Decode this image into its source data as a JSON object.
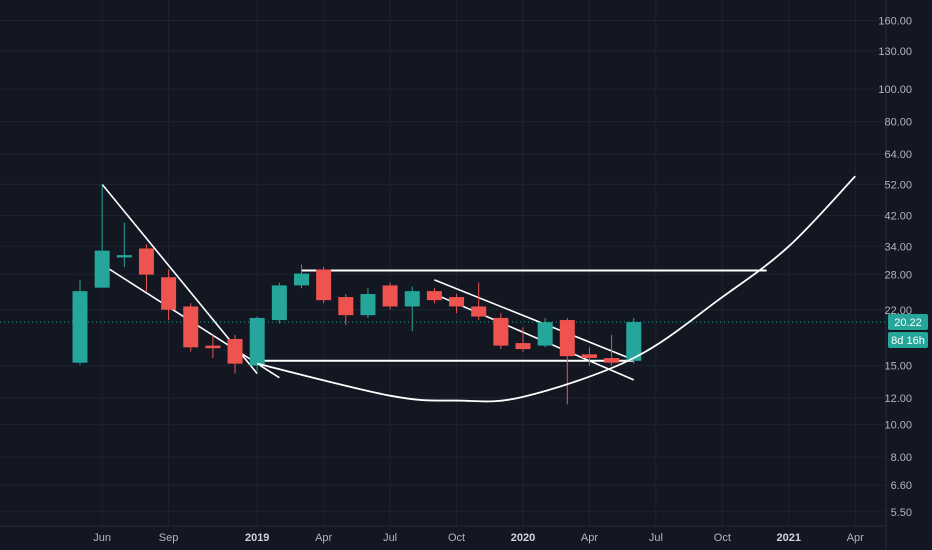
{
  "chart_data": {
    "type": "candlestick",
    "y_scale": "log",
    "ylim": [
      5.2,
      172
    ],
    "y_ticks": [
      "160.00",
      "130.00",
      "100.00",
      "80.00",
      "64.00",
      "52.00",
      "42.00",
      "34.00",
      "28.00",
      "22.00",
      "15.00",
      "12.00",
      "10.00",
      "8.00",
      "6.60",
      "5.50"
    ],
    "x_ticks": [
      {
        "label": "Jun",
        "bold": false
      },
      {
        "label": "Sep",
        "bold": false
      },
      {
        "label": "2019",
        "bold": true
      },
      {
        "label": "Apr",
        "bold": false
      },
      {
        "label": "Jul",
        "bold": false
      },
      {
        "label": "Oct",
        "bold": false
      },
      {
        "label": "2020",
        "bold": true
      },
      {
        "label": "Apr",
        "bold": false
      },
      {
        "label": "Jul",
        "bold": false
      },
      {
        "label": "Oct",
        "bold": false
      },
      {
        "label": "2021",
        "bold": true
      },
      {
        "label": "Apr",
        "bold": false
      }
    ],
    "candles": [
      {
        "date": "2018-05",
        "open": 15.3,
        "high": 27.0,
        "low": 15.1,
        "close": 25.0
      },
      {
        "date": "2018-06",
        "open": 25.6,
        "high": 52.0,
        "low": 25.6,
        "close": 33.0
      },
      {
        "date": "2018-07",
        "open": 31.5,
        "high": 40.0,
        "low": 29.5,
        "close": 32.0
      },
      {
        "date": "2018-08",
        "open": 33.5,
        "high": 34.5,
        "low": 25.0,
        "close": 28.0
      },
      {
        "date": "2018-09",
        "open": 27.5,
        "high": 29.0,
        "low": 20.5,
        "close": 22.0
      },
      {
        "date": "2018-10",
        "open": 22.5,
        "high": 23.0,
        "low": 16.5,
        "close": 17.0
      },
      {
        "date": "2018-11",
        "open": 17.2,
        "high": 18.5,
        "low": 15.8,
        "close": 16.9
      },
      {
        "date": "2018-12",
        "open": 18.0,
        "high": 18.5,
        "low": 14.2,
        "close": 15.2
      },
      {
        "date": "2019-01",
        "open": 15.0,
        "high": 21.0,
        "low": 14.5,
        "close": 20.8
      },
      {
        "date": "2019-02",
        "open": 20.5,
        "high": 26.5,
        "low": 20.0,
        "close": 26.0
      },
      {
        "date": "2019-03",
        "open": 26.0,
        "high": 30.0,
        "low": 25.5,
        "close": 28.2
      },
      {
        "date": "2019-04",
        "open": 29.0,
        "high": 29.5,
        "low": 23.0,
        "close": 23.5
      },
      {
        "date": "2019-05",
        "open": 24.0,
        "high": 24.5,
        "low": 19.8,
        "close": 21.2
      },
      {
        "date": "2019-06",
        "open": 21.2,
        "high": 25.5,
        "low": 20.8,
        "close": 24.5
      },
      {
        "date": "2019-07",
        "open": 26.0,
        "high": 26.5,
        "low": 22.0,
        "close": 22.5
      },
      {
        "date": "2019-08",
        "open": 22.5,
        "high": 25.8,
        "low": 19.0,
        "close": 25.0
      },
      {
        "date": "2019-09",
        "open": 25.0,
        "high": 25.5,
        "low": 23.0,
        "close": 23.5
      },
      {
        "date": "2019-10",
        "open": 24.0,
        "high": 24.5,
        "low": 21.5,
        "close": 22.5
      },
      {
        "date": "2019-11",
        "open": 22.5,
        "high": 26.5,
        "low": 20.5,
        "close": 21.0
      },
      {
        "date": "2019-12",
        "open": 20.8,
        "high": 21.5,
        "low": 16.8,
        "close": 17.2
      },
      {
        "date": "2020-01",
        "open": 17.5,
        "high": 19.5,
        "low": 16.5,
        "close": 16.8
      },
      {
        "date": "2020-02",
        "open": 17.2,
        "high": 20.8,
        "low": 17.0,
        "close": 20.2
      },
      {
        "date": "2020-03",
        "open": 20.5,
        "high": 20.8,
        "low": 11.5,
        "close": 16.0
      },
      {
        "date": "2020-04",
        "open": 16.2,
        "high": 17.0,
        "low": 15.0,
        "close": 15.8
      },
      {
        "date": "2020-05",
        "open": 15.8,
        "high": 18.5,
        "low": 15.0,
        "close": 15.3
      },
      {
        "date": "2020-06",
        "open": 15.5,
        "high": 20.8,
        "low": 15.2,
        "close": 20.22
      }
    ],
    "drawings": [
      {
        "type": "line",
        "from": [
          "2018-06",
          52.0
        ],
        "to": [
          "2019-01",
          14.2
        ]
      },
      {
        "type": "line",
        "from": [
          "2018-06",
          30.0
        ],
        "to": [
          "2019-02",
          13.8
        ]
      },
      {
        "type": "horizontal",
        "y": 28.8,
        "from": "2019-03",
        "to": "2020-12"
      },
      {
        "type": "horizontal",
        "y": 15.5,
        "from": "2019-01",
        "to": "2020-06"
      },
      {
        "type": "line",
        "from": [
          "2019-09",
          27.0
        ],
        "to": [
          "2020-06",
          15.6
        ]
      },
      {
        "type": "line",
        "from": [
          "2019-09",
          24.5
        ],
        "to": [
          "2020-06",
          13.6
        ]
      },
      {
        "type": "curve",
        "points": [
          [
            "2019-01",
            15.2
          ],
          [
            "2019-07",
            12.2
          ],
          [
            "2019-10",
            11.8
          ],
          [
            "2020-01",
            12.1
          ],
          [
            "2020-06",
            15.8
          ],
          [
            "2020-10",
            24.0
          ],
          [
            "2021-01",
            34.0
          ],
          [
            "2021-04",
            55.0
          ]
        ]
      }
    ],
    "last_price": "20.22",
    "countdown": "8d 16h",
    "up_color": "#26a69a",
    "down_color": "#ef5350",
    "drawing_color": "#ffffff",
    "background": "#131722",
    "grid": true
  }
}
